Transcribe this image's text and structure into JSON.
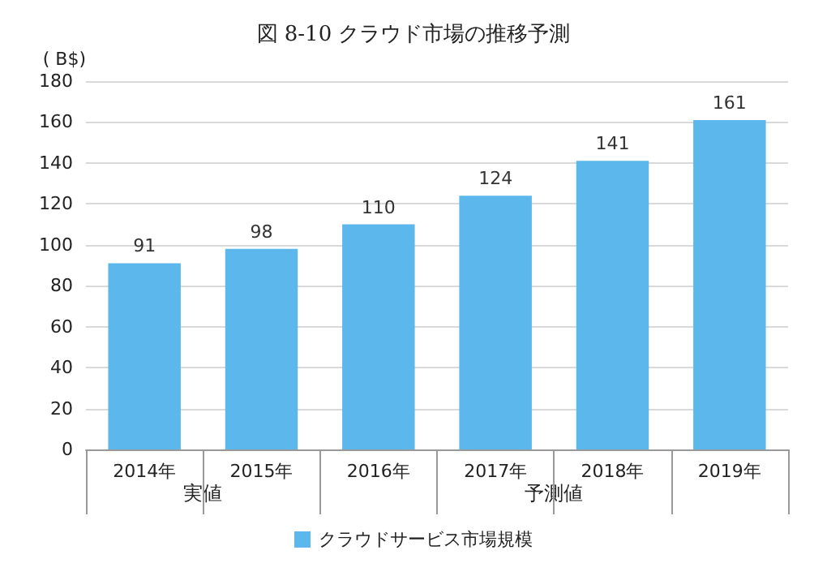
{
  "chart_data": {
    "type": "bar",
    "title": "図 8-10 クラウド市場の推移予測",
    "ylabel": "( B$)",
    "categories": [
      "2014年",
      "2015年",
      "2016年",
      "2017年",
      "2018年",
      "2019年"
    ],
    "series": [
      {
        "name": "クラウドサービス市場規模",
        "color": "#5cb8ec",
        "values": [
          91,
          98,
          110,
          124,
          141,
          161
        ]
      }
    ],
    "ylim": [
      0,
      180
    ],
    "yticks": [
      0,
      20,
      40,
      60,
      80,
      100,
      120,
      140,
      160,
      180
    ],
    "grid": "y",
    "legend": "bottom",
    "data_labels": true,
    "annotations": [
      "実値",
      "予測値"
    ]
  }
}
